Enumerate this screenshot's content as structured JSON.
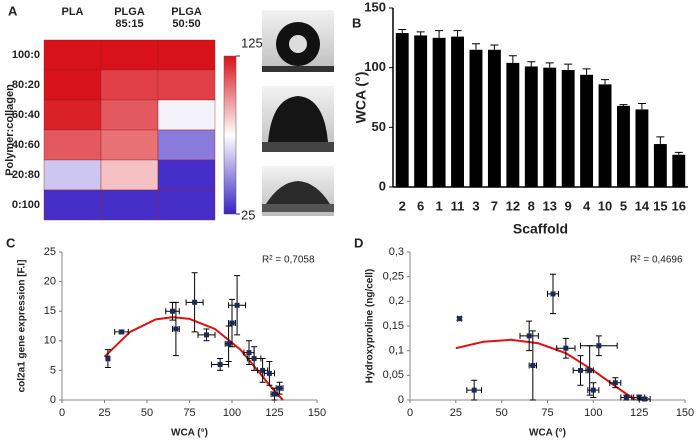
{
  "chart_data": [
    {
      "type": "heatmap",
      "panel": "A",
      "columns": [
        [
          "PLA"
        ],
        [
          "PLGA",
          "85:15"
        ],
        [
          "PLGA",
          "50:50"
        ]
      ],
      "rows": [
        "100:0",
        "80:20",
        "60:40",
        "40:60",
        "20:80",
        "0:100"
      ],
      "ylabel": "Polymer:collagen",
      "values": [
        [
          128,
          128,
          125
        ],
        [
          128,
          115,
          115
        ],
        [
          122,
          110,
          72
        ],
        [
          110,
          105,
          45
        ],
        [
          62,
          88,
          28
        ],
        [
          28,
          28,
          28
        ]
      ],
      "clim": [
        25,
        125
      ],
      "cticks": [
        25,
        125
      ],
      "colormap": [
        "#3a22c4",
        "#ffffff",
        "#d8121a"
      ]
    },
    {
      "type": "bar",
      "panel": "B",
      "categories": [
        "2",
        "6",
        "1",
        "11",
        "3",
        "7",
        "12",
        "8",
        "13",
        "9",
        "4",
        "10",
        "5",
        "14",
        "15",
        "16"
      ],
      "values": [
        129,
        127,
        125,
        126,
        115,
        115,
        104,
        101,
        100,
        98,
        94,
        86,
        68,
        65,
        36,
        27
      ],
      "errors": [
        3,
        3,
        6,
        5,
        5,
        4,
        6,
        4,
        4,
        5,
        5,
        4,
        1,
        5,
        6,
        2
      ],
      "color": "#000000",
      "xlabel": "Scaffold",
      "ylabel": "WCA (°)",
      "ylim": [
        0,
        150
      ],
      "yticks": [
        0,
        50,
        100,
        150
      ]
    },
    {
      "type": "scatter",
      "panel": "C",
      "xlabel": "WCA (°)",
      "ylabel": "col2a1 gene expression [F.I]",
      "annotation": "R² = 0,7058",
      "x": [
        27,
        35,
        65,
        67,
        78,
        85,
        93,
        98,
        103,
        100,
        110,
        113,
        118,
        122,
        125,
        128
      ],
      "y": [
        7,
        11.5,
        15,
        12,
        16.5,
        11,
        6,
        9.5,
        16,
        13,
        8,
        7,
        5,
        4.5,
        1,
        2
      ],
      "xerr": [
        1,
        4,
        4,
        2,
        5,
        5,
        5,
        2,
        5,
        2,
        3,
        4,
        3,
        3,
        2,
        2
      ],
      "yerr": [
        1.5,
        0.3,
        1.5,
        4.5,
        5,
        1,
        1,
        3,
        5,
        4,
        2,
        2,
        2,
        2,
        1,
        1
      ],
      "fit": {
        "x": [
          25,
          40,
          55,
          65,
          75,
          90,
          105,
          115,
          125,
          130
        ],
        "y": [
          7.3,
          11.5,
          13.6,
          14,
          13.7,
          12,
          8.5,
          5,
          1.5,
          0
        ]
      },
      "color": "#1a2a5a",
      "fit_color": "#e01010",
      "xlim": [
        0,
        150
      ],
      "xticks": [
        0,
        25,
        50,
        75,
        100,
        125,
        150
      ],
      "ylim": [
        0,
        25
      ],
      "yticks": [
        0,
        5,
        10,
        15,
        20,
        25
      ]
    },
    {
      "type": "scatter",
      "panel": "D",
      "xlabel": "WCA (°)",
      "ylabel": "Hydroxyproline (ng/cell)",
      "annotation": "R² = 0,4696",
      "x": [
        27,
        35,
        65,
        67,
        78,
        85,
        93,
        98,
        103,
        100,
        112,
        118,
        125,
        128
      ],
      "y": [
        0.165,
        0.02,
        0.13,
        0.07,
        0.215,
        0.105,
        0.06,
        0.06,
        0.11,
        0.02,
        0.035,
        0.005,
        0.005,
        0.002
      ],
      "xerr": [
        1,
        4,
        5,
        2,
        3,
        5,
        4,
        2,
        10,
        3,
        3,
        3,
        3,
        3
      ],
      "yerr": [
        0.003,
        0.02,
        0.03,
        0.07,
        0.04,
        0.02,
        0.03,
        0.05,
        0.02,
        0.015,
        0.01,
        0.005,
        0.005,
        0.003
      ],
      "fit": {
        "x": [
          25,
          40,
          55,
          70,
          85,
          100,
          115,
          123
        ],
        "y": [
          0.105,
          0.118,
          0.122,
          0.115,
          0.095,
          0.06,
          0.02,
          0
        ]
      },
      "color": "#1a2a5a",
      "fit_color": "#e01010",
      "xlim": [
        0,
        150
      ],
      "xticks": [
        0,
        25,
        50,
        75,
        100,
        125,
        150
      ],
      "ylim": [
        0,
        0.3
      ],
      "yticks": [
        0,
        {
          "value": 0.05,
          "label": "0,05"
        },
        {
          "value": 0.1,
          "label": "0,1"
        },
        {
          "value": 0.15,
          "label": "0,15"
        },
        {
          "value": 0.2,
          "label": "0,2"
        },
        {
          "value": 0.25,
          "label": "0,25"
        },
        {
          "value": 0.3,
          "label": "0,3"
        }
      ]
    }
  ]
}
